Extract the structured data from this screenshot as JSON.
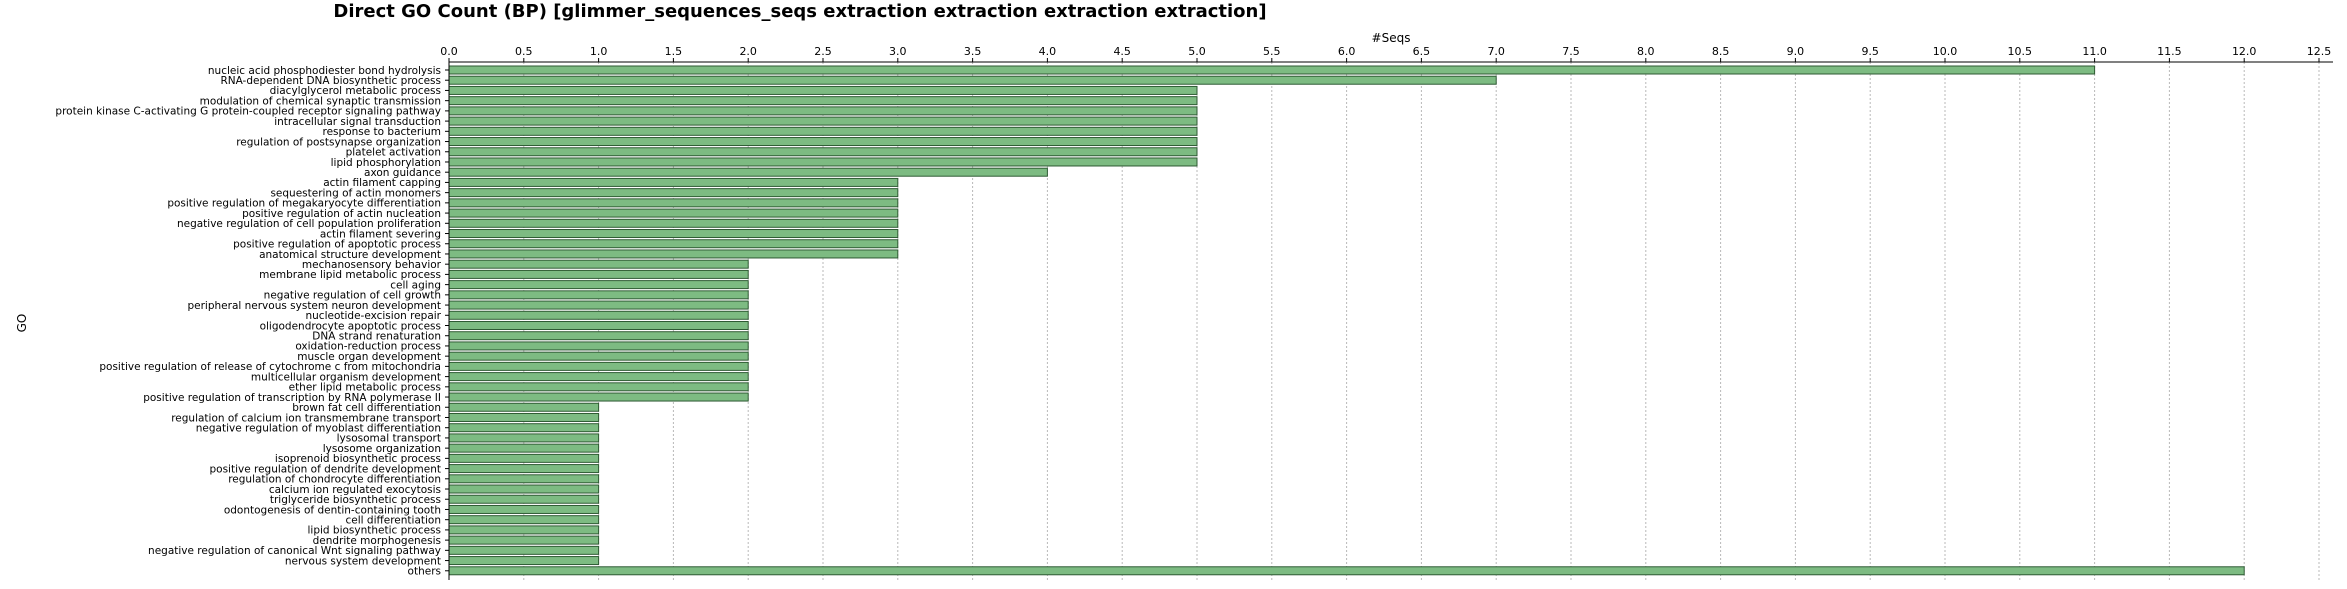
{
  "chart_data": {
    "type": "bar",
    "orientation": "horizontal",
    "title": "Direct GO Count (BP) [glimmer_sequences_seqs extraction extraction extraction extraction]",
    "xlabel": "#Seqs",
    "ylabel": "GO",
    "xlim": [
      0,
      12.5
    ],
    "x_ticks": [
      "0.0",
      "0.5",
      "1.0",
      "1.5",
      "2.0",
      "2.5",
      "3.0",
      "3.5",
      "4.0",
      "4.5",
      "5.0",
      "5.5",
      "6.0",
      "6.5",
      "7.0",
      "7.5",
      "8.0",
      "8.5",
      "9.0",
      "9.5",
      "10.0",
      "10.5",
      "11.0",
      "11.5",
      "12.0",
      "12.5"
    ],
    "x_axis_position": "top",
    "grid": "vertical dotted",
    "bar_color": "#7dbb82",
    "categories": [
      "nucleic acid phosphodiester bond hydrolysis",
      "RNA-dependent DNA biosynthetic process",
      "diacylglycerol metabolic process",
      "modulation of chemical synaptic transmission",
      "protein kinase C-activating G protein-coupled receptor signaling pathway",
      "intracellular signal transduction",
      "response to bacterium",
      "regulation of postsynapse organization",
      "platelet activation",
      "lipid phosphorylation",
      "axon guidance",
      "actin filament capping",
      "sequestering of actin monomers",
      "positive regulation of megakaryocyte differentiation",
      "positive regulation of actin nucleation",
      "negative regulation of cell population proliferation",
      "actin filament severing",
      "positive regulation of apoptotic process",
      "anatomical structure development",
      "mechanosensory behavior",
      "membrane lipid metabolic process",
      "cell aging",
      "negative regulation of cell growth",
      "peripheral nervous system neuron development",
      "nucleotide-excision repair",
      "oligodendrocyte apoptotic process",
      "DNA strand renaturation",
      "oxidation-reduction process",
      "muscle organ development",
      "positive regulation of release of cytochrome c from mitochondria",
      "multicellular organism development",
      "ether lipid metabolic process",
      "positive regulation of transcription by RNA polymerase II",
      "brown fat cell differentiation",
      "regulation of calcium ion transmembrane transport",
      "negative regulation of myoblast differentiation",
      "lysosomal transport",
      "lysosome organization",
      "isoprenoid biosynthetic process",
      "positive regulation of dendrite development",
      "regulation of chondrocyte differentiation",
      "calcium ion regulated exocytosis",
      "triglyceride biosynthetic process",
      "odontogenesis of dentin-containing tooth",
      "cell differentiation",
      "lipid biosynthetic process",
      "dendrite morphogenesis",
      "negative regulation of canonical Wnt signaling pathway",
      "nervous system development",
      "others"
    ],
    "values": [
      11,
      7,
      5,
      5,
      5,
      5,
      5,
      5,
      5,
      5,
      4,
      3,
      3,
      3,
      3,
      3,
      3,
      3,
      3,
      2,
      2,
      2,
      2,
      2,
      2,
      2,
      2,
      2,
      2,
      2,
      2,
      2,
      2,
      1,
      1,
      1,
      1,
      1,
      1,
      1,
      1,
      1,
      1,
      1,
      1,
      1,
      1,
      1,
      1,
      12
    ]
  }
}
